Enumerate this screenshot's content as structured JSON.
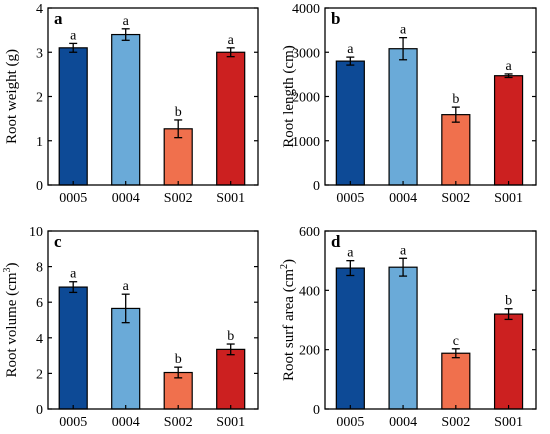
{
  "colors": {
    "0005": "#0d4a96",
    "0004": "#6aaad8",
    "S002": "#f0704d",
    "S001": "#cc2020"
  },
  "chart_data": [
    {
      "type": "bar",
      "panel": "a",
      "ylabel": "Root weight (g)",
      "ylabel_sup": "",
      "ylabel_suffix": "",
      "categories": [
        "0005",
        "0004",
        "S002",
        "S001"
      ],
      "values": [
        3.1,
        3.4,
        1.27,
        3.0
      ],
      "errors": [
        0.1,
        0.13,
        0.2,
        0.1
      ],
      "letters": [
        "a",
        "a",
        "b",
        "a"
      ],
      "ylim": [
        0,
        4
      ],
      "yticks": [
        0,
        1,
        2,
        3,
        4
      ]
    },
    {
      "type": "bar",
      "panel": "b",
      "ylabel": "Root length (cm)",
      "ylabel_sup": "",
      "ylabel_suffix": "",
      "categories": [
        "0005",
        "0004",
        "S002",
        "S001"
      ],
      "values": [
        2800,
        3080,
        1590,
        2470
      ],
      "errors": [
        90,
        250,
        170,
        40
      ],
      "letters": [
        "a",
        "a",
        "b",
        "a"
      ],
      "ylim": [
        0,
        4000
      ],
      "yticks": [
        0,
        1000,
        2000,
        3000,
        4000
      ]
    },
    {
      "type": "bar",
      "panel": "c",
      "ylabel": "Root volume (cm",
      "ylabel_sup": "3",
      "ylabel_suffix": ")",
      "categories": [
        "0005",
        "0004",
        "S002",
        "S001"
      ],
      "values": [
        6.85,
        5.65,
        2.05,
        3.35
      ],
      "errors": [
        0.3,
        0.8,
        0.3,
        0.3
      ],
      "letters": [
        "a",
        "a",
        "b",
        "b"
      ],
      "ylim": [
        0,
        10
      ],
      "yticks": [
        0,
        2,
        4,
        6,
        8,
        10
      ]
    },
    {
      "type": "bar",
      "panel": "d",
      "ylabel": "Root surf area (cm",
      "ylabel_sup": "2",
      "ylabel_suffix": ")",
      "categories": [
        "0005",
        "0004",
        "S002",
        "S001"
      ],
      "values": [
        475,
        478,
        188,
        320
      ],
      "errors": [
        25,
        30,
        15,
        18
      ],
      "letters": [
        "a",
        "a",
        "c",
        "b"
      ],
      "ylim": [
        0,
        600
      ],
      "yticks": [
        0,
        200,
        400,
        600
      ]
    }
  ]
}
